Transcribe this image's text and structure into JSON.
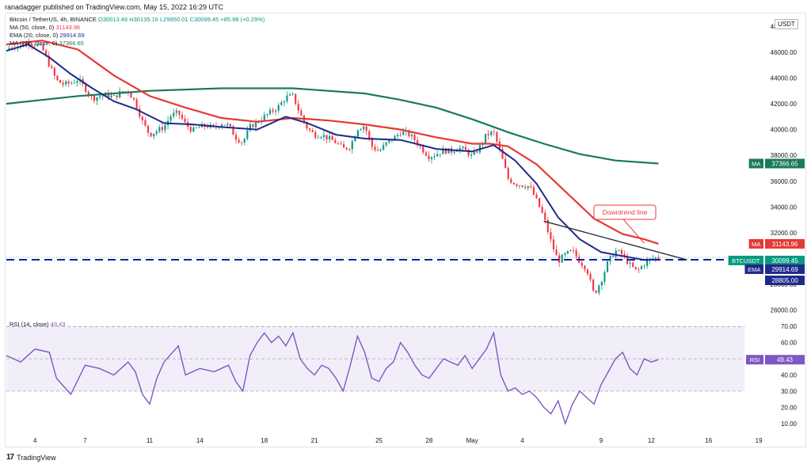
{
  "header": {
    "publisher_line": "ranadagger published on TradingView.com, May 15, 2022 16:29 UTC"
  },
  "legend": {
    "title": "Bitcoin / TetherUS, 4h, BINANCE",
    "ohlc": "O30013.46 H30135.16 L29950.01 C30099.45 +85.98 (+0.29%)",
    "ma50_label": "MA (50, close, 0)",
    "ma50_value": "31143.96",
    "ema_label": "EMA (20, close, 0)",
    "ema_value": "29914.69",
    "ma200_label": "MA (200, close, 0)",
    "ma200_value": "37366.65",
    "rsi_label": "RSI (14, close)",
    "rsi_value": "49.43"
  },
  "axis": {
    "currency_button": "USDT"
  },
  "footer": {
    "brand": "TradingView"
  },
  "colors": {
    "up": "#089981",
    "down": "#f23645",
    "ma50": "#e53935",
    "ema20": "#1e2a8a",
    "ma200": "#1a7a5a",
    "rsi": "#7e57c2",
    "support": "#1a1aa6",
    "annotation": "#f23645"
  },
  "chart_data": [
    {
      "type": "candlestick",
      "title": "Bitcoin / TetherUS, 4h, BINANCE",
      "ylim": [
        25800,
        48200
      ],
      "y_ticks": [
        "48000.00",
        "46000.00",
        "44000.00",
        "42000.00",
        "40000.00",
        "38000.00",
        "36000.00",
        "34000.00",
        "32000.00",
        "30000.00",
        "28000.00",
        "26000.00"
      ],
      "x_ticks": [
        "4",
        "7",
        "11",
        "14",
        "18",
        "21",
        "25",
        "28",
        "May",
        "4",
        "9",
        "12",
        "16",
        "19"
      ],
      "price_path": [
        [
          0,
          46200
        ],
        [
          2,
          46500
        ],
        [
          4,
          46400
        ],
        [
          6,
          46800
        ],
        [
          8,
          46600
        ],
        [
          10,
          46300
        ],
        [
          12,
          45000
        ],
        [
          14,
          43800
        ],
        [
          16,
          43500
        ],
        [
          18,
          43600
        ],
        [
          20,
          43900
        ],
        [
          22,
          43200
        ],
        [
          24,
          42400
        ],
        [
          26,
          42600
        ],
        [
          28,
          42700
        ],
        [
          30,
          42500
        ],
        [
          32,
          42900
        ],
        [
          34,
          43000
        ],
        [
          36,
          42100
        ],
        [
          38,
          40600
        ],
        [
          40,
          39600
        ],
        [
          42,
          39900
        ],
        [
          44,
          40200
        ],
        [
          46,
          41100
        ],
        [
          48,
          41300
        ],
        [
          50,
          40400
        ],
        [
          52,
          39900
        ],
        [
          54,
          40200
        ],
        [
          56,
          40300
        ],
        [
          58,
          40100
        ],
        [
          60,
          40500
        ],
        [
          62,
          40300
        ],
        [
          64,
          39400
        ],
        [
          66,
          39000
        ],
        [
          68,
          40200
        ],
        [
          70,
          40600
        ],
        [
          72,
          41000
        ],
        [
          74,
          41400
        ],
        [
          76,
          41800
        ],
        [
          78,
          42500
        ],
        [
          80,
          42600
        ],
        [
          82,
          41200
        ],
        [
          84,
          40100
        ],
        [
          86,
          39600
        ],
        [
          88,
          39600
        ],
        [
          90,
          39300
        ],
        [
          92,
          39000
        ],
        [
          94,
          38500
        ],
        [
          96,
          38700
        ],
        [
          98,
          40100
        ],
        [
          100,
          40300
        ],
        [
          102,
          38700
        ],
        [
          104,
          38300
        ],
        [
          106,
          38900
        ],
        [
          108,
          39300
        ],
        [
          110,
          39800
        ],
        [
          112,
          39700
        ],
        [
          114,
          39200
        ],
        [
          116,
          38500
        ],
        [
          118,
          37900
        ],
        [
          120,
          38100
        ],
        [
          122,
          38400
        ],
        [
          124,
          38300
        ],
        [
          126,
          38600
        ],
        [
          128,
          38400
        ],
        [
          130,
          37900
        ],
        [
          132,
          38600
        ],
        [
          134,
          39600
        ],
        [
          136,
          39800
        ],
        [
          138,
          38100
        ],
        [
          140,
          36200
        ],
        [
          142,
          35800
        ],
        [
          144,
          35700
        ],
        [
          146,
          35600
        ],
        [
          148,
          34500
        ],
        [
          150,
          33200
        ],
        [
          152,
          31300
        ],
        [
          154,
          29800
        ],
        [
          156,
          30300
        ],
        [
          158,
          30600
        ],
        [
          160,
          29800
        ],
        [
          162,
          29200
        ],
        [
          164,
          27200
        ],
        [
          166,
          28300
        ],
        [
          168,
          29800
        ],
        [
          170,
          30600
        ],
        [
          172,
          30300
        ],
        [
          174,
          29500
        ],
        [
          176,
          29000
        ],
        [
          178,
          29600
        ],
        [
          180,
          30000
        ],
        [
          182,
          30100
        ]
      ],
      "series": [
        {
          "name": "MA (50, close, 0)",
          "values": [
            [
              0,
              46600
            ],
            [
              10,
              46900
            ],
            [
              20,
              46200
            ],
            [
              30,
              44200
            ],
            [
              40,
              42600
            ],
            [
              50,
              41700
            ],
            [
              60,
              40900
            ],
            [
              70,
              40600
            ],
            [
              80,
              40900
            ],
            [
              90,
              40700
            ],
            [
              100,
              40400
            ],
            [
              110,
              40000
            ],
            [
              120,
              39400
            ],
            [
              130,
              38900
            ],
            [
              135,
              38900
            ],
            [
              140,
              38700
            ],
            [
              148,
              37300
            ],
            [
              156,
              35200
            ],
            [
              164,
              33100
            ],
            [
              172,
              31900
            ],
            [
              178,
              31500
            ],
            [
              182,
              31144
            ]
          ]
        },
        {
          "name": "EMA (20, close, 0)",
          "values": [
            [
              0,
              46100
            ],
            [
              6,
              46600
            ],
            [
              12,
              45600
            ],
            [
              18,
              44300
            ],
            [
              24,
              43200
            ],
            [
              30,
              42200
            ],
            [
              36,
              41600
            ],
            [
              44,
              40500
            ],
            [
              52,
              40400
            ],
            [
              60,
              40200
            ],
            [
              70,
              40000
            ],
            [
              78,
              41000
            ],
            [
              84,
              40500
            ],
            [
              92,
              39600
            ],
            [
              100,
              39300
            ],
            [
              110,
              39200
            ],
            [
              120,
              38500
            ],
            [
              130,
              38300
            ],
            [
              136,
              38800
            ],
            [
              142,
              37600
            ],
            [
              148,
              35800
            ],
            [
              154,
              33200
            ],
            [
              160,
              31500
            ],
            [
              166,
              30500
            ],
            [
              172,
              30200
            ],
            [
              178,
              29900
            ],
            [
              182,
              29915
            ]
          ]
        },
        {
          "name": "MA (200, close, 0)",
          "values": [
            [
              0,
              42000
            ],
            [
              20,
              42600
            ],
            [
              40,
              43000
            ],
            [
              60,
              43200
            ],
            [
              80,
              43200
            ],
            [
              100,
              42800
            ],
            [
              110,
              42300
            ],
            [
              120,
              41700
            ],
            [
              130,
              40800
            ],
            [
              140,
              39800
            ],
            [
              150,
              38900
            ],
            [
              160,
              38100
            ],
            [
              170,
              37600
            ],
            [
              182,
              37367
            ]
          ]
        }
      ],
      "support_level": 29914.69,
      "downtrend_line": {
        "label": "Downtrend line",
        "from": [
          150,
          32900
        ],
        "to": [
          184,
          30200
        ]
      },
      "price_labels": [
        {
          "tag": "MA",
          "value": "37366.65"
        },
        {
          "tag": "MA",
          "value": "31143.96"
        },
        {
          "tag": "BTCUSDT",
          "value": "30099.45",
          "sub": "03:30:58"
        },
        {
          "tag": "EMA",
          "value": "29914.69"
        },
        {
          "tag": "",
          "value": "28805.00"
        }
      ]
    },
    {
      "type": "line",
      "title": "RSI (14, close)",
      "ylim": [
        5,
        75
      ],
      "y_ticks": [
        "70.00",
        "60.00",
        "50.00",
        "40.00",
        "30.00",
        "20.00",
        "10.00"
      ],
      "band": [
        30,
        70
      ],
      "series": [
        {
          "name": "RSI (14, close)",
          "values": [
            [
              0,
              52
            ],
            [
              4,
              48
            ],
            [
              8,
              56
            ],
            [
              12,
              54
            ],
            [
              14,
              38
            ],
            [
              18,
              28
            ],
            [
              22,
              46
            ],
            [
              26,
              44
            ],
            [
              30,
              40
            ],
            [
              34,
              48
            ],
            [
              36,
              42
            ],
            [
              38,
              28
            ],
            [
              40,
              22
            ],
            [
              42,
              38
            ],
            [
              44,
              48
            ],
            [
              48,
              58
            ],
            [
              50,
              40
            ],
            [
              54,
              44
            ],
            [
              58,
              42
            ],
            [
              62,
              46
            ],
            [
              64,
              36
            ],
            [
              66,
              30
            ],
            [
              68,
              52
            ],
            [
              70,
              60
            ],
            [
              72,
              66
            ],
            [
              74,
              60
            ],
            [
              76,
              64
            ],
            [
              78,
              58
            ],
            [
              80,
              66
            ],
            [
              82,
              50
            ],
            [
              84,
              44
            ],
            [
              86,
              40
            ],
            [
              88,
              46
            ],
            [
              90,
              44
            ],
            [
              92,
              38
            ],
            [
              94,
              30
            ],
            [
              96,
              46
            ],
            [
              98,
              64
            ],
            [
              100,
              54
            ],
            [
              102,
              38
            ],
            [
              104,
              36
            ],
            [
              106,
              44
            ],
            [
              108,
              48
            ],
            [
              110,
              60
            ],
            [
              112,
              54
            ],
            [
              114,
              46
            ],
            [
              116,
              40
            ],
            [
              118,
              38
            ],
            [
              120,
              44
            ],
            [
              122,
              50
            ],
            [
              124,
              48
            ],
            [
              126,
              46
            ],
            [
              128,
              52
            ],
            [
              130,
              44
            ],
            [
              132,
              50
            ],
            [
              134,
              56
            ],
            [
              136,
              66
            ],
            [
              138,
              40
            ],
            [
              140,
              30
            ],
            [
              142,
              32
            ],
            [
              144,
              28
            ],
            [
              146,
              30
            ],
            [
              148,
              26
            ],
            [
              150,
              20
            ],
            [
              152,
              16
            ],
            [
              154,
              24
            ],
            [
              156,
              10
            ],
            [
              158,
              22
            ],
            [
              160,
              30
            ],
            [
              162,
              26
            ],
            [
              164,
              22
            ],
            [
              166,
              34
            ],
            [
              168,
              42
            ],
            [
              170,
              50
            ],
            [
              172,
              54
            ],
            [
              174,
              44
            ],
            [
              176,
              40
            ],
            [
              178,
              50
            ],
            [
              180,
              48
            ],
            [
              182,
              49.43
            ]
          ]
        }
      ]
    }
  ]
}
